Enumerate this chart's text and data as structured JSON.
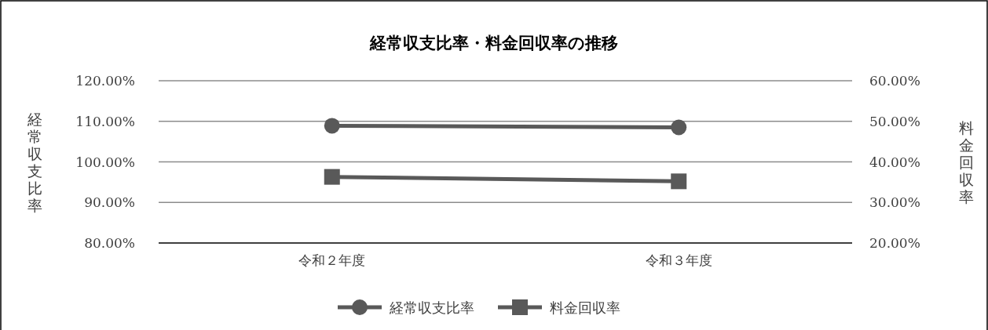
{
  "chart_data": {
    "type": "line",
    "title": "経常収支比率・料金回収率の推移",
    "categories": [
      "令和２年度",
      "令和３年度"
    ],
    "series": [
      {
        "name": "経常収支比率",
        "color": "#595959",
        "values": [
          108.9,
          108.5
        ],
        "marker": "circle"
      },
      {
        "name": "料金回収率",
        "color": "#595959",
        "values": [
          36.3,
          35.2
        ],
        "marker": "square",
        "axis": "y2"
      }
    ],
    "ylabel": "経常収支比率",
    "y2label": "料金回収率",
    "ylim": [
      80,
      120
    ],
    "yticks": [
      {
        "value": 80,
        "label": "80.00%"
      },
      {
        "value": 90,
        "label": "90.00%"
      },
      {
        "value": 100,
        "label": "100.00%"
      },
      {
        "value": 110,
        "label": "110.00%"
      },
      {
        "value": 120,
        "label": "120.00%"
      }
    ],
    "y2lim": [
      20,
      60
    ],
    "y2ticks": [
      {
        "value": 20,
        "label": "20.00%"
      },
      {
        "value": 30,
        "label": "30.00%"
      },
      {
        "value": 40,
        "label": "40.00%"
      },
      {
        "value": 50,
        "label": "50.00%"
      },
      {
        "value": 60,
        "label": "60.00%"
      }
    ],
    "grid": "y",
    "legend": "bottom",
    "line_style": "solid"
  }
}
